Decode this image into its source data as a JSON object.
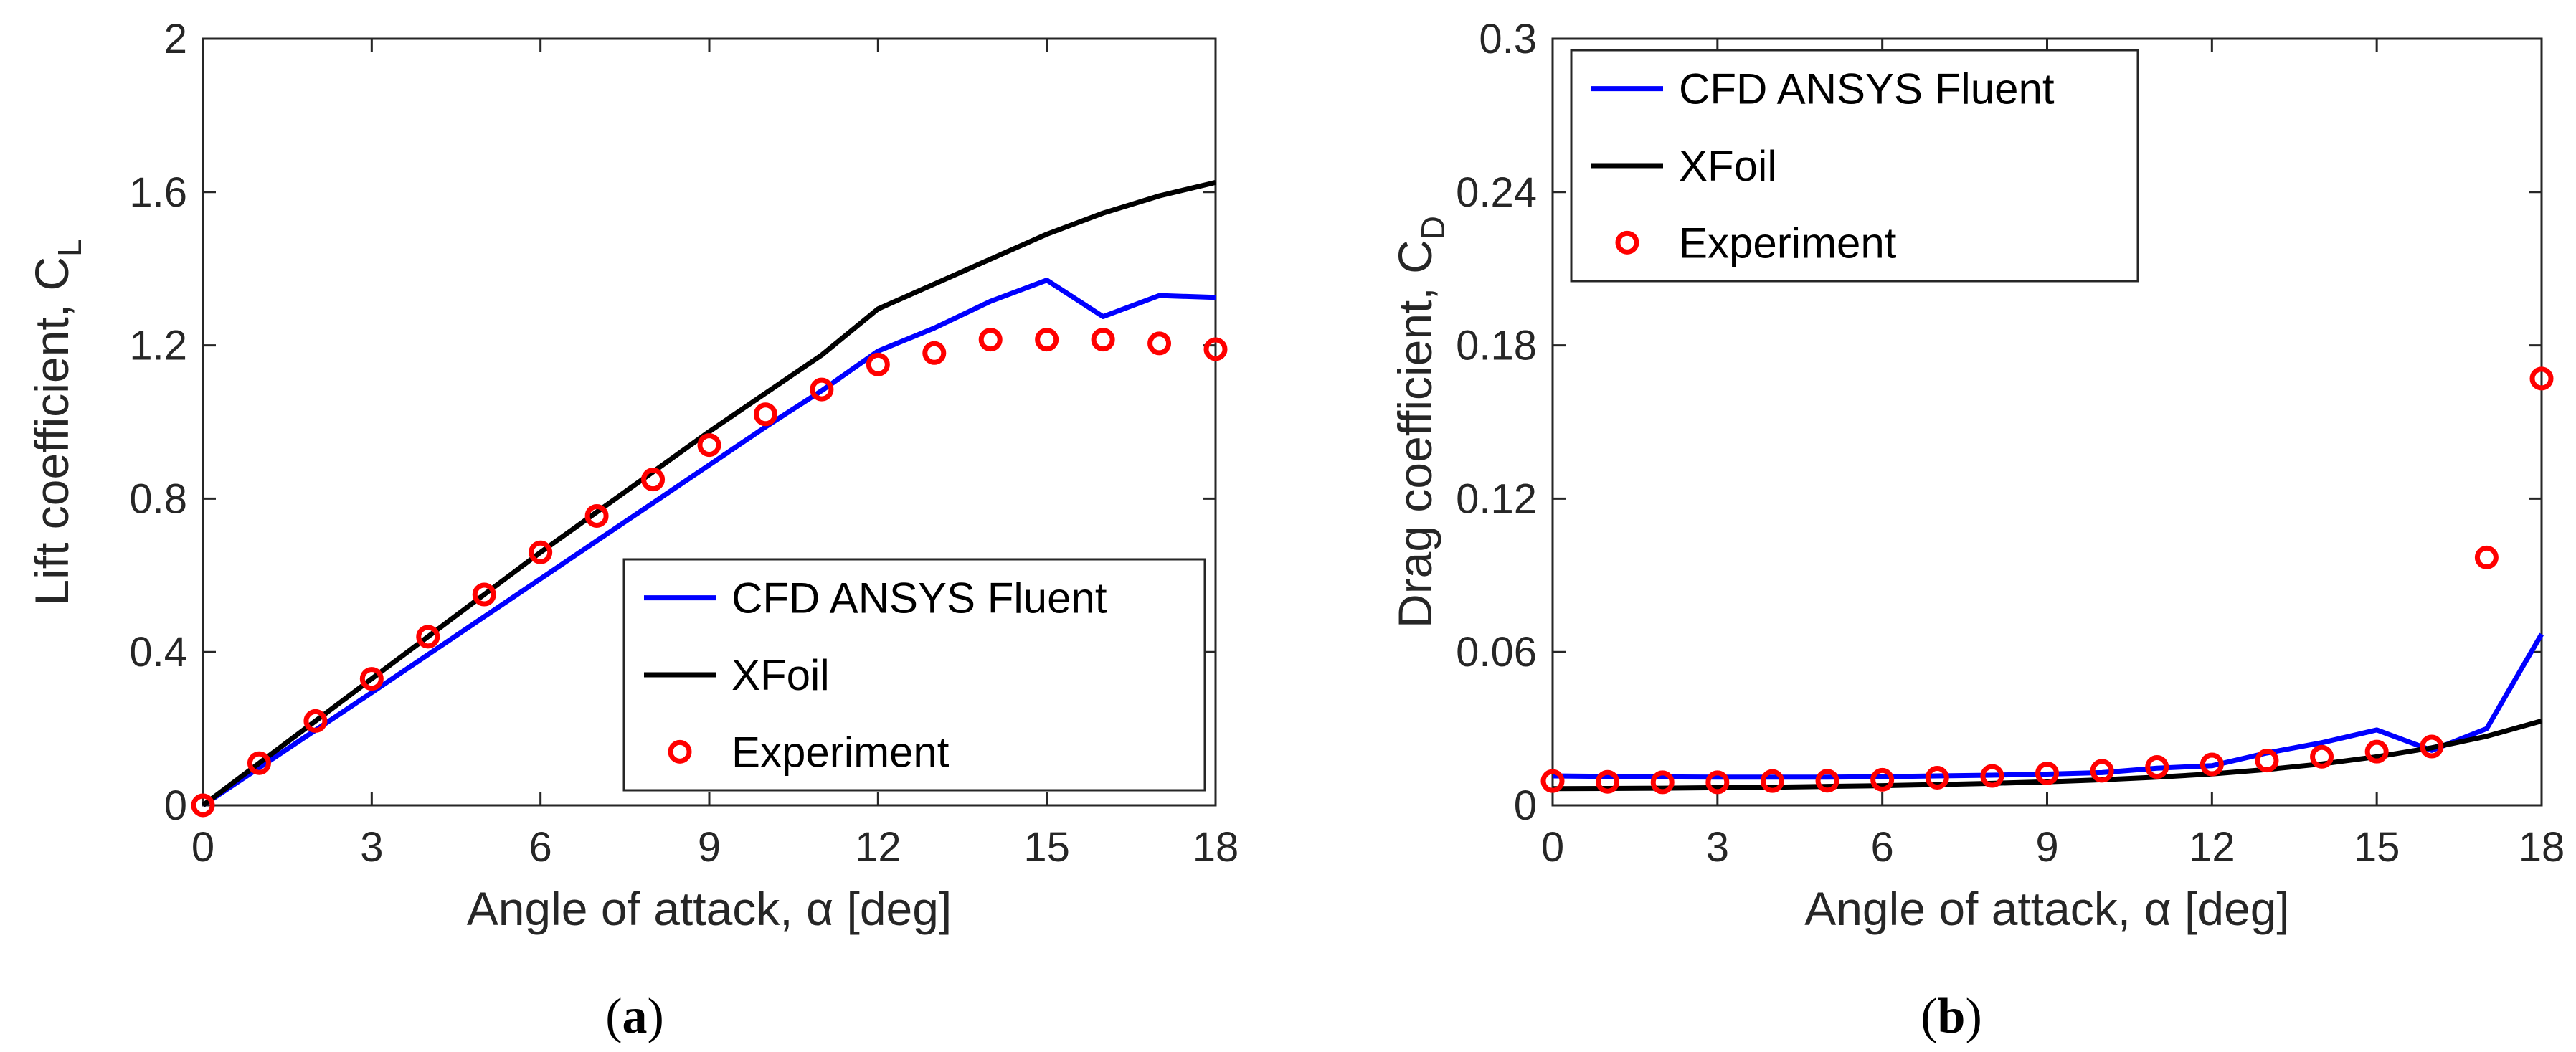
{
  "chart_data": [
    {
      "type": "line",
      "panel_label": "a",
      "caption_open": "(",
      "caption_close": ")",
      "xlabel": "Angle of attack, α [deg]",
      "ylabel": "Lift coefficient, C",
      "ylabel_sub": "L",
      "xlim": [
        0,
        18
      ],
      "ylim": [
        0,
        2
      ],
      "xticks": [
        "0",
        "3",
        "6",
        "9",
        "12",
        "15",
        "18"
      ],
      "yticks": [
        "0",
        "0.4",
        "0.8",
        "1.2",
        "1.6",
        "2"
      ],
      "legend_position": "bottom-right",
      "series": [
        {
          "name": "CFD ANSYS Fluent",
          "style": "line",
          "color": "#0000ff",
          "x": [
            0,
            1,
            2,
            3,
            4,
            5,
            6,
            7,
            8,
            9,
            10,
            11,
            12,
            13,
            14,
            15,
            16,
            17,
            18
          ],
          "y": [
            0.0,
            0.098,
            0.196,
            0.294,
            0.393,
            0.492,
            0.591,
            0.69,
            0.789,
            0.888,
            0.987,
            1.082,
            1.185,
            1.245,
            1.315,
            1.37,
            1.275,
            1.33,
            1.325
          ]
        },
        {
          "name": "XFoil",
          "style": "line",
          "color": "#000000",
          "x": [
            0,
            1,
            2,
            3,
            4,
            5,
            6,
            7,
            8,
            9,
            10,
            11,
            12,
            13,
            14,
            15,
            16,
            17,
            18
          ],
          "y": [
            0.0,
            0.11,
            0.22,
            0.33,
            0.44,
            0.55,
            0.66,
            0.765,
            0.87,
            0.975,
            1.075,
            1.175,
            1.295,
            1.36,
            1.425,
            1.49,
            1.545,
            1.59,
            1.625
          ]
        },
        {
          "name": "Experiment",
          "style": "markers",
          "color": "#ff0000",
          "x": [
            0,
            1,
            2,
            3,
            4,
            5,
            6,
            7,
            8,
            9,
            10,
            11,
            12,
            13,
            14,
            15,
            16,
            17,
            18
          ],
          "y": [
            0.0,
            0.11,
            0.22,
            0.33,
            0.44,
            0.55,
            0.66,
            0.755,
            0.85,
            0.94,
            1.02,
            1.085,
            1.15,
            1.18,
            1.215,
            1.215,
            1.215,
            1.205,
            1.19
          ]
        }
      ]
    },
    {
      "type": "line",
      "panel_label": "b",
      "caption_open": "(",
      "caption_close": ")",
      "xlabel": "Angle of attack, α [deg]",
      "ylabel": "Drag coefficient, C",
      "ylabel_sub": "D",
      "xlim": [
        0,
        18
      ],
      "ylim": [
        0,
        0.3
      ],
      "xticks": [
        "0",
        "3",
        "6",
        "9",
        "12",
        "15",
        "18"
      ],
      "yticks": [
        "0",
        "0.06",
        "0.12",
        "0.18",
        "0.24",
        "0.3"
      ],
      "legend_position": "top-left",
      "series": [
        {
          "name": "CFD ANSYS Fluent",
          "style": "line",
          "color": "#0000ff",
          "x": [
            0,
            1,
            2,
            3,
            4,
            5,
            6,
            7,
            8,
            9,
            10,
            11,
            12,
            13,
            14,
            15,
            16,
            17,
            18
          ],
          "y": [
            0.0115,
            0.0113,
            0.0111,
            0.011,
            0.011,
            0.011,
            0.0112,
            0.0115,
            0.0118,
            0.0122,
            0.0128,
            0.0145,
            0.0155,
            0.0205,
            0.0245,
            0.0295,
            0.0215,
            0.03,
            0.067
          ]
        },
        {
          "name": "XFoil",
          "style": "line",
          "color": "#000000",
          "x": [
            0,
            1,
            2,
            3,
            4,
            5,
            6,
            7,
            8,
            9,
            10,
            11,
            12,
            13,
            14,
            15,
            16,
            17,
            18
          ],
          "y": [
            0.0065,
            0.0066,
            0.0067,
            0.0069,
            0.0071,
            0.0074,
            0.0077,
            0.0081,
            0.0086,
            0.0092,
            0.01,
            0.011,
            0.0123,
            0.014,
            0.0162,
            0.019,
            0.0225,
            0.027,
            0.033
          ]
        },
        {
          "name": "Experiment",
          "style": "markers",
          "color": "#ff0000",
          "x": [
            0,
            1,
            2,
            3,
            4,
            5,
            6,
            7,
            8,
            9,
            10,
            11,
            12,
            13,
            14,
            15,
            16,
            17,
            18
          ],
          "y": [
            0.0095,
            0.0092,
            0.009,
            0.009,
            0.0095,
            0.0096,
            0.01,
            0.0108,
            0.0115,
            0.0125,
            0.0135,
            0.015,
            0.016,
            0.0175,
            0.019,
            0.021,
            0.023,
            0.097,
            0.167
          ]
        }
      ]
    }
  ]
}
